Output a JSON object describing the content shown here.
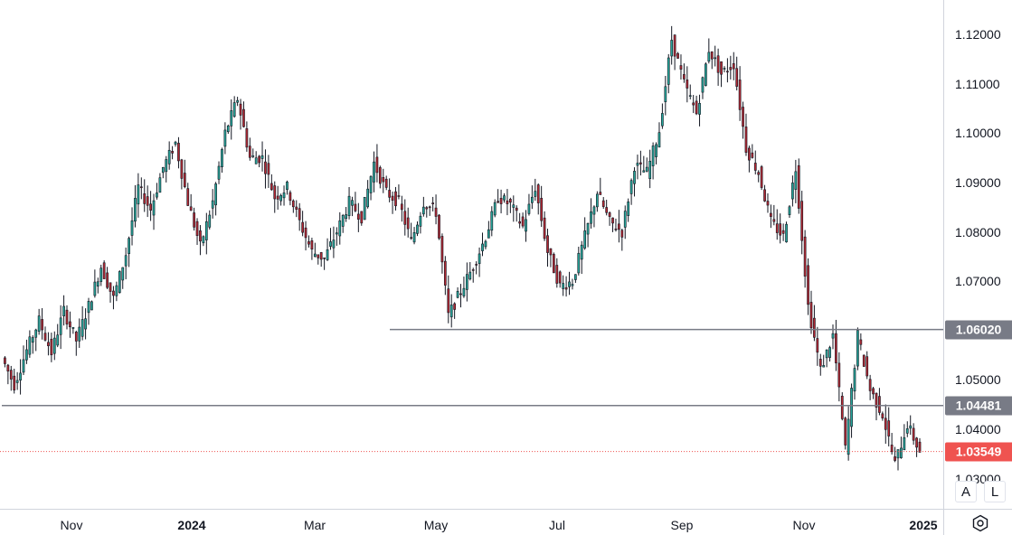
{
  "chart_data": {
    "type": "candlestick",
    "instrument_note": "",
    "price_axis": {
      "ticks": [
        "1.12000",
        "1.11000",
        "1.10000",
        "1.09000",
        "1.08000",
        "1.07000",
        "1.05000",
        "1.04000",
        "1.03000"
      ],
      "tick_values": [
        1.12,
        1.11,
        1.1,
        1.09,
        1.08,
        1.07,
        1.05,
        1.04,
        1.03
      ],
      "range": [
        1.0215,
        1.1265
      ],
      "grid": false
    },
    "time_axis": {
      "labels": [
        {
          "text": "Nov",
          "bold": false
        },
        {
          "text": "2024",
          "bold": true
        },
        {
          "text": "Mar",
          "bold": false
        },
        {
          "text": "May",
          "bold": false
        },
        {
          "text": "Jul",
          "bold": false
        },
        {
          "text": "Sep",
          "bold": false
        },
        {
          "text": "Nov",
          "bold": false
        },
        {
          "text": "2025",
          "bold": true
        }
      ]
    },
    "levels": [
      {
        "value": 1.0602,
        "label": "1.06020",
        "color": "#787b86"
      },
      {
        "value": 1.04481,
        "label": "1.04481",
        "color": "#787b86"
      }
    ],
    "last_price": {
      "value": 1.03549,
      "label": "1.03549",
      "color": "#ef5350"
    },
    "colors": {
      "up": "#26a69a",
      "down": "#ef5350",
      "up_body": "#26a69a",
      "down_body": "#b22833",
      "wick": "#131722"
    },
    "anchors": [
      1.0545,
      1.049,
      1.056,
      1.062,
      1.0555,
      1.064,
      1.058,
      1.065,
      1.073,
      1.0665,
      1.0755,
      1.089,
      1.0845,
      1.093,
      1.098,
      1.086,
      1.077,
      1.086,
      1.1,
      1.107,
      1.095,
      1.095,
      1.087,
      1.089,
      1.082,
      1.076,
      1.0745,
      1.08,
      1.086,
      1.083,
      1.094,
      1.088,
      1.086,
      1.078,
      1.086,
      1.084,
      1.063,
      1.068,
      1.073,
      1.079,
      1.087,
      1.0855,
      1.081,
      1.089,
      1.076,
      1.069,
      1.07,
      1.079,
      1.088,
      1.082,
      1.08,
      1.0935,
      1.092,
      1.1005,
      1.119,
      1.11,
      1.104,
      1.117,
      1.112,
      1.114,
      1.097,
      1.092,
      1.082,
      1.079,
      1.093,
      1.065,
      1.052,
      1.059,
      1.036,
      1.059,
      1.048,
      1.043,
      1.033,
      1.041,
      1.0355
    ],
    "candles_per_segment": 4
  },
  "toolbar": {
    "auto_label": "A",
    "log_label": "L",
    "settings_icon": "gear-icon"
  }
}
